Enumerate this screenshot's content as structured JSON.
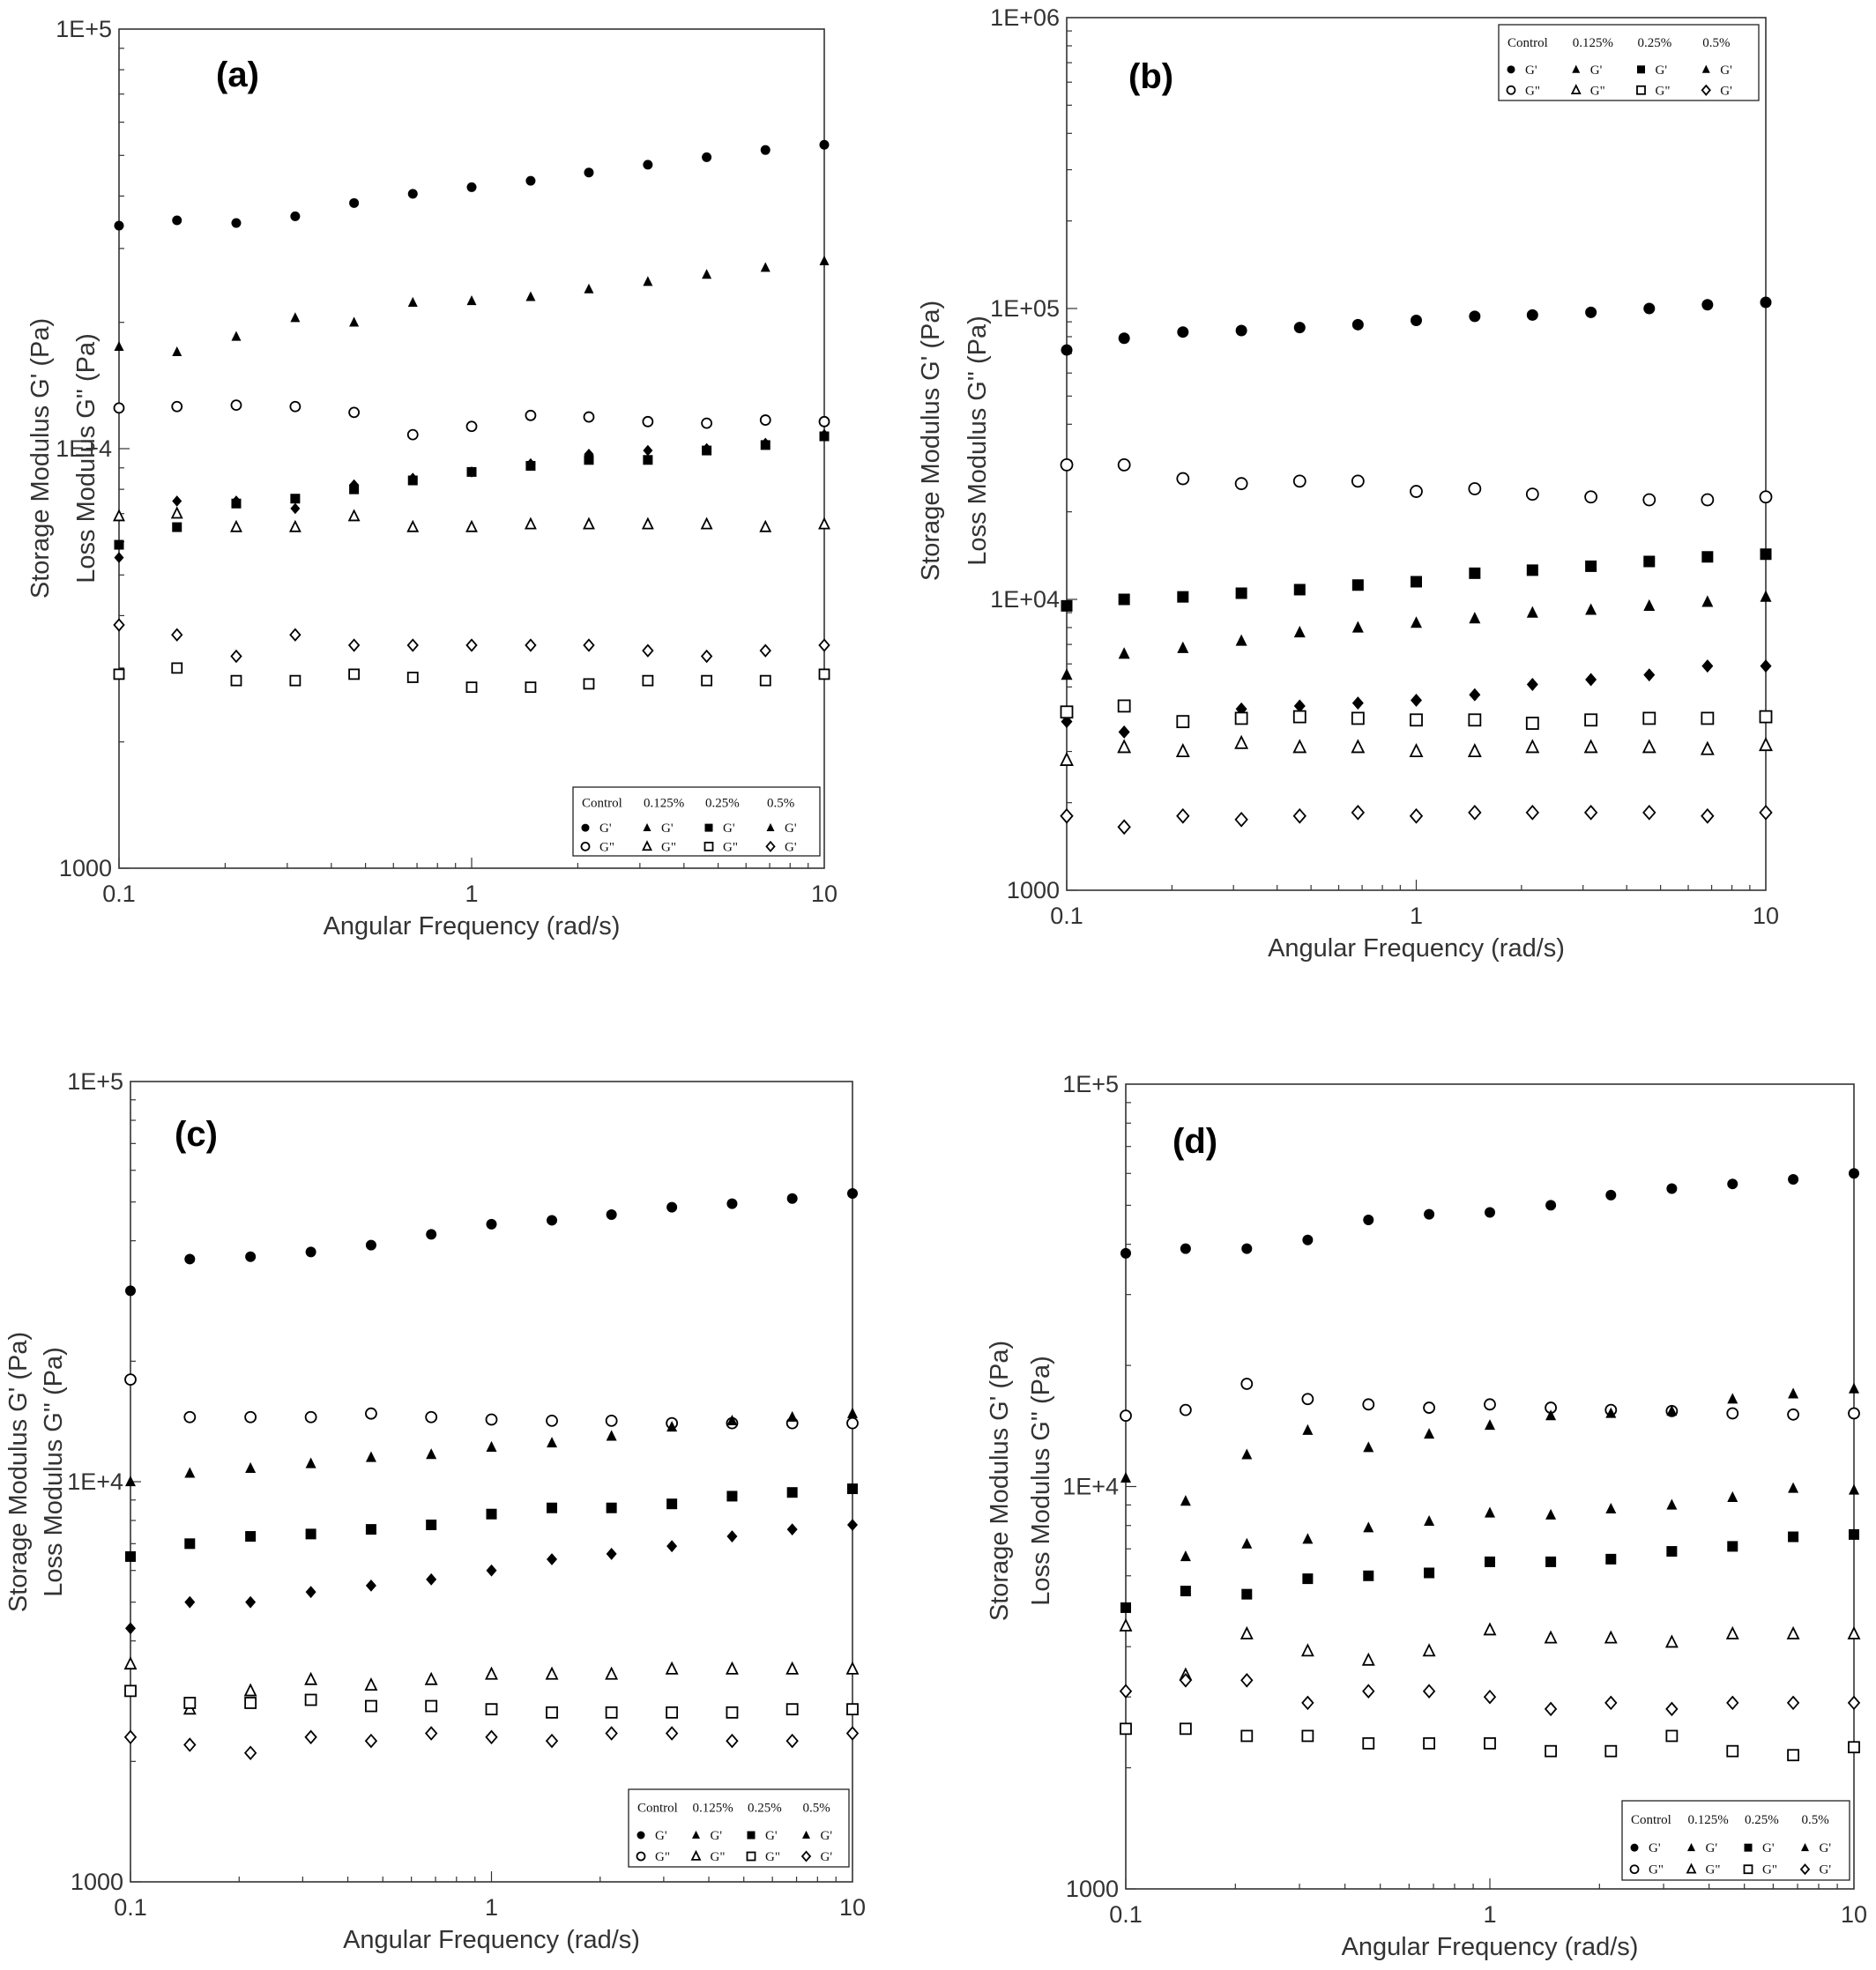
{
  "chart_data": [
    {
      "type": "scatter",
      "panel_label": "(a)",
      "xlabel": "Angular Frequency (rad/s)",
      "ylabel_lines": [
        "Storage Modulus G' (Pa)",
        "Loss Modulus G'' (Pa)"
      ],
      "xscale": "log",
      "yscale": "log",
      "xlim": [
        0.1,
        10
      ],
      "ylim": [
        1000,
        100000
      ],
      "x_ticks": [
        "0.1",
        "1",
        "10"
      ],
      "y_ticks": [
        "1000",
        "1E+4",
        "1E+5"
      ],
      "legend_position": "bottom-right",
      "legend": {
        "headers": [
          "Control",
          "0.125%",
          "0.25%",
          "0.5%"
        ],
        "row1": [
          "G'",
          "G'",
          "G'",
          "G'"
        ],
        "row2": [
          "G\"",
          "G\"",
          "G\"",
          "G'"
        ]
      },
      "x": [
        0.1,
        0.146,
        0.215,
        0.316,
        0.464,
        0.681,
        1.0,
        1.47,
        2.15,
        3.16,
        4.64,
        6.81,
        10.0
      ],
      "series": [
        {
          "marker": "circle-filled",
          "values": [
            34000,
            35000,
            34500,
            35800,
            38500,
            40500,
            42000,
            43500,
            45500,
            47500,
            49500,
            51500,
            53000
          ]
        },
        {
          "marker": "triangle-filled",
          "values": [
            17500,
            17000,
            18500,
            20500,
            20000,
            22300,
            22500,
            23000,
            24000,
            25000,
            26000,
            27000,
            28000
          ]
        },
        {
          "marker": "circle-open",
          "values": [
            12500,
            12600,
            12700,
            12600,
            12200,
            10800,
            11300,
            12000,
            11900,
            11600,
            11500,
            11700,
            11600
          ]
        },
        {
          "marker": "diamond-filled",
          "values": [
            5500,
            7500,
            7500,
            7200,
            8200,
            8500,
            8800,
            9200,
            9700,
            9900,
            10000,
            10300,
            10800
          ]
        },
        {
          "marker": "square-filled",
          "values": [
            5900,
            6500,
            7400,
            7600,
            8000,
            8400,
            8800,
            9100,
            9400,
            9400,
            9900,
            10200,
            10700
          ]
        },
        {
          "marker": "triangle-open",
          "values": [
            6900,
            7000,
            6500,
            6500,
            6900,
            6500,
            6500,
            6600,
            6600,
            6600,
            6600,
            6500,
            6600
          ]
        },
        {
          "marker": "diamond-open",
          "values": [
            3800,
            3600,
            3200,
            3600,
            3400,
            3400,
            3400,
            3400,
            3400,
            3300,
            3200,
            3300,
            3400
          ]
        },
        {
          "marker": "square-open",
          "values": [
            2900,
            3000,
            2800,
            2800,
            2900,
            2850,
            2700,
            2700,
            2750,
            2800,
            2800,
            2800,
            2900
          ]
        }
      ]
    },
    {
      "type": "scatter",
      "panel_label": "(b)",
      "xlabel": "Angular Frequency (rad/s)",
      "ylabel_lines": [
        "Storage Modulus G' (Pa)",
        "Loss Modulus G'' (Pa)"
      ],
      "xscale": "log",
      "yscale": "log",
      "xlim": [
        0.1,
        10
      ],
      "ylim": [
        1000,
        1000000
      ],
      "x_ticks": [
        "0.1",
        "1",
        "10"
      ],
      "y_ticks": [
        "1000",
        "1E+04",
        "1E+05",
        "1E+06"
      ],
      "legend_position": "top-right",
      "legend": {
        "headers": [
          "Control",
          "0.125%",
          "0.25%",
          "0.5%"
        ],
        "row1": [
          "G'",
          "G'",
          "G'",
          "G'"
        ],
        "row2": [
          "G\"",
          "G\"",
          "G\"",
          "G'"
        ]
      },
      "x": [
        0.1,
        0.146,
        0.215,
        0.316,
        0.464,
        0.681,
        1.0,
        1.47,
        2.15,
        3.16,
        4.64,
        6.81,
        10.0
      ],
      "series": [
        {
          "marker": "circle-filled",
          "values": [
            72000,
            79000,
            83000,
            84000,
            86000,
            88000,
            91000,
            94000,
            95000,
            97000,
            100000,
            103000,
            105000
          ]
        },
        {
          "marker": "circle-open",
          "values": [
            29000,
            29000,
            26000,
            25000,
            25500,
            25500,
            23500,
            24000,
            23000,
            22500,
            22000,
            22000,
            22500
          ]
        },
        {
          "marker": "square-filled",
          "values": [
            9500,
            10000,
            10200,
            10500,
            10800,
            11200,
            11500,
            12300,
            12600,
            13000,
            13500,
            14000,
            14300
          ]
        },
        {
          "marker": "triangle-filled",
          "values": [
            5500,
            6500,
            6800,
            7200,
            7700,
            8000,
            8300,
            8600,
            9000,
            9200,
            9500,
            9800,
            10200
          ]
        },
        {
          "marker": "diamond-filled",
          "values": [
            3800,
            3500,
            3800,
            4200,
            4300,
            4400,
            4500,
            4700,
            5100,
            5300,
            5500,
            5900,
            5900
          ]
        },
        {
          "marker": "square-open",
          "values": [
            4100,
            4300,
            3800,
            3900,
            3950,
            3900,
            3850,
            3850,
            3750,
            3850,
            3900,
            3900,
            3950
          ]
        },
        {
          "marker": "triangle-open",
          "values": [
            2800,
            3100,
            3000,
            3200,
            3100,
            3100,
            3000,
            3000,
            3100,
            3100,
            3100,
            3050,
            3150
          ]
        },
        {
          "marker": "diamond-open",
          "values": [
            1800,
            1650,
            1800,
            1750,
            1800,
            1850,
            1800,
            1850,
            1850,
            1850,
            1850,
            1800,
            1850
          ]
        }
      ]
    },
    {
      "type": "scatter",
      "panel_label": "(c)",
      "xlabel": "Angular Frequency (rad/s)",
      "ylabel_lines": [
        "Storage Modulus G' (Pa)",
        "Loss Modulus G''  (Pa)"
      ],
      "xscale": "log",
      "yscale": "log",
      "xlim": [
        0.1,
        10
      ],
      "ylim": [
        1000,
        100000
      ],
      "x_ticks": [
        "0.1",
        "1",
        "10"
      ],
      "y_ticks": [
        "1000",
        "1E+4",
        "1E+5"
      ],
      "legend_position": "bottom-right",
      "legend": {
        "headers": [
          "Control",
          "0.125%",
          "0.25%",
          "0.5%"
        ],
        "row1": [
          "G'",
          "G'",
          "G'",
          "G'"
        ],
        "row2": [
          "G\"",
          "G\"",
          "G\"",
          "G'"
        ]
      },
      "x": [
        0.1,
        0.146,
        0.215,
        0.316,
        0.464,
        0.681,
        1.0,
        1.47,
        2.15,
        3.16,
        4.64,
        6.81,
        10.0
      ],
      "series": [
        {
          "marker": "circle-filled",
          "values": [
            30000,
            36000,
            36500,
            37500,
            39000,
            41500,
            44000,
            45000,
            46500,
            48500,
            49500,
            51000,
            52500
          ]
        },
        {
          "marker": "circle-open",
          "values": [
            18000,
            14500,
            14500,
            14500,
            14800,
            14500,
            14300,
            14200,
            14200,
            14000,
            14000,
            14000,
            14000
          ]
        },
        {
          "marker": "triangle-filled",
          "values": [
            10000,
            10500,
            10800,
            11100,
            11500,
            11700,
            12200,
            12500,
            13000,
            13700,
            14200,
            14500,
            14800
          ]
        },
        {
          "marker": "square-filled",
          "values": [
            6500,
            7000,
            7300,
            7400,
            7600,
            7800,
            8300,
            8600,
            8600,
            8800,
            9200,
            9400,
            9600
          ]
        },
        {
          "marker": "diamond-filled",
          "values": [
            4300,
            5000,
            5000,
            5300,
            5500,
            5700,
            6000,
            6400,
            6600,
            6900,
            7300,
            7600,
            7800
          ]
        },
        {
          "marker": "triangle-open",
          "values": [
            3500,
            2700,
            3000,
            3200,
            3100,
            3200,
            3300,
            3300,
            3300,
            3400,
            3400,
            3400,
            3400
          ]
        },
        {
          "marker": "square-open",
          "values": [
            3000,
            2800,
            2800,
            2850,
            2750,
            2750,
            2700,
            2650,
            2650,
            2650,
            2650,
            2700,
            2700
          ]
        },
        {
          "marker": "diamond-open",
          "values": [
            2300,
            2200,
            2100,
            2300,
            2250,
            2350,
            2300,
            2250,
            2350,
            2350,
            2250,
            2250,
            2350
          ]
        }
      ]
    },
    {
      "type": "scatter",
      "panel_label": "(d)",
      "xlabel": "Angular Frequency (rad/s)",
      "ylabel_lines": [
        "Storage Modulus G' (Pa)",
        "Loss Modulus G''  (Pa)"
      ],
      "xscale": "log",
      "yscale": "log",
      "xlim": [
        0.1,
        10
      ],
      "ylim": [
        1000,
        100000
      ],
      "x_ticks": [
        "0.1",
        "1",
        "10"
      ],
      "y_ticks": [
        "1000",
        "1E+4",
        "1E+5"
      ],
      "legend_position": "bottom-right",
      "legend": {
        "headers": [
          "Control",
          "0.125%",
          "0.25%",
          "0.5%"
        ],
        "row1": [
          "G'",
          "G'",
          "G'",
          "G'"
        ],
        "row2": [
          "G\"",
          "G\"",
          "G\"",
          "G'"
        ]
      },
      "x": [
        0.1,
        0.146,
        0.215,
        0.316,
        0.464,
        0.681,
        1.0,
        1.47,
        2.15,
        3.16,
        4.64,
        6.81,
        10.0
      ],
      "series": [
        {
          "marker": "circle-filled",
          "values": [
            38000,
            39000,
            39000,
            41000,
            46000,
            47500,
            48000,
            50000,
            53000,
            55000,
            56500,
            58000,
            60000
          ]
        },
        {
          "marker": "circle-open",
          "values": [
            15000,
            15500,
            18000,
            16500,
            16000,
            15700,
            16000,
            15700,
            15500,
            15400,
            15200,
            15100,
            15200
          ]
        },
        {
          "marker": "triangle-filled",
          "values": [
            10500,
            9200,
            12000,
            13800,
            12500,
            13500,
            14200,
            15000,
            15200,
            15400,
            16500,
            17000,
            17500
          ]
        },
        {
          "marker": "triangle-filled",
          "values": [
            4500,
            6700,
            7200,
            7400,
            7900,
            8200,
            8600,
            8500,
            8800,
            9000,
            9400,
            9900,
            9800
          ]
        },
        {
          "marker": "square-filled",
          "values": [
            5000,
            5500,
            5400,
            5900,
            6000,
            6100,
            6500,
            6500,
            6600,
            6900,
            7100,
            7500,
            7600
          ]
        },
        {
          "marker": "triangle-open",
          "values": [
            4500,
            3400,
            4300,
            3900,
            3700,
            3900,
            4400,
            4200,
            4200,
            4100,
            4300,
            4300,
            4300
          ]
        },
        {
          "marker": "diamond-open",
          "values": [
            3100,
            3300,
            3300,
            2900,
            3100,
            3100,
            3000,
            2800,
            2900,
            2800,
            2900,
            2900,
            2900
          ]
        },
        {
          "marker": "square-open",
          "values": [
            2500,
            2500,
            2400,
            2400,
            2300,
            2300,
            2300,
            2200,
            2200,
            2400,
            2200,
            2150,
            2250
          ]
        }
      ]
    }
  ]
}
